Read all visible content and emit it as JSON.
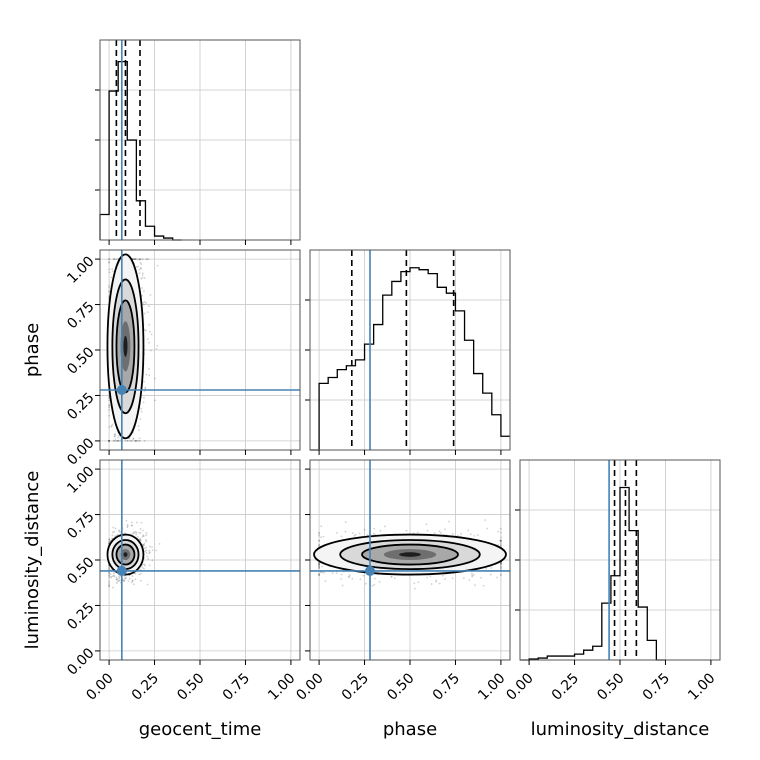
{
  "chart_data": {
    "type": "corner",
    "parameters": [
      "geocent_time",
      "phase",
      "luminosity_distance"
    ],
    "x_ticks": [
      "0.00",
      "0.25",
      "0.50",
      "0.75",
      "1.00"
    ],
    "y_ticks": [
      "0.00",
      "0.25",
      "0.50",
      "0.75",
      "1.00"
    ],
    "axis_range": [
      -0.05,
      1.05
    ],
    "grid": true,
    "truth_color": "#4682b4",
    "truths": {
      "geocent_time": 0.07,
      "phase": 0.28,
      "luminosity_distance": 0.44
    },
    "quantiles": {
      "geocent_time": [
        0.04,
        0.09,
        0.17
      ],
      "phase": [
        0.18,
        0.48,
        0.74
      ],
      "luminosity_distance": [
        0.47,
        0.53,
        0.59
      ]
    },
    "histograms": {
      "geocent_time": {
        "bin_edges": [
          -0.05,
          0.0,
          0.05,
          0.1,
          0.15,
          0.2,
          0.25,
          0.3,
          0.35,
          0.4
        ],
        "counts": [
          0.13,
          0.76,
          0.91,
          0.51,
          0.2,
          0.07,
          0.02,
          0.01,
          0.0
        ]
      },
      "phase": {
        "bin_edges": [
          -0.05,
          0.0,
          0.05,
          0.1,
          0.15,
          0.2,
          0.25,
          0.3,
          0.35,
          0.4,
          0.45,
          0.5,
          0.55,
          0.6,
          0.65,
          0.7,
          0.75,
          0.8,
          0.85,
          0.9,
          0.95,
          1.0,
          1.05
        ],
        "counts": [
          0.0,
          0.34,
          0.37,
          0.41,
          0.43,
          0.46,
          0.54,
          0.64,
          0.79,
          0.86,
          0.91,
          0.93,
          0.92,
          0.9,
          0.83,
          0.8,
          0.71,
          0.56,
          0.39,
          0.29,
          0.18,
          0.07
        ]
      },
      "luminosity_distance": {
        "bin_edges": [
          -0.05,
          0.0,
          0.05,
          0.1,
          0.15,
          0.2,
          0.25,
          0.3,
          0.35,
          0.4,
          0.45,
          0.5,
          0.55,
          0.6,
          0.65,
          0.7,
          0.75
        ],
        "counts": [
          0.0,
          0.005,
          0.01,
          0.02,
          0.02,
          0.02,
          0.03,
          0.05,
          0.07,
          0.29,
          0.43,
          0.88,
          0.66,
          0.27,
          0.1,
          0.0
        ]
      }
    },
    "joint_2d": [
      {
        "x": "geocent_time",
        "y": "phase",
        "center": [
          0.09,
          0.52
        ],
        "sigma": [
          0.045,
          0.23
        ],
        "rho": 0.05
      },
      {
        "x": "geocent_time",
        "y": "luminosity_distance",
        "center": [
          0.09,
          0.53
        ],
        "sigma": [
          0.045,
          0.05
        ],
        "rho": 0.15
      },
      {
        "x": "phase",
        "y": "luminosity_distance",
        "center": [
          0.5,
          0.53
        ],
        "sigma": [
          0.24,
          0.05
        ],
        "rho": 0.0
      }
    ]
  }
}
